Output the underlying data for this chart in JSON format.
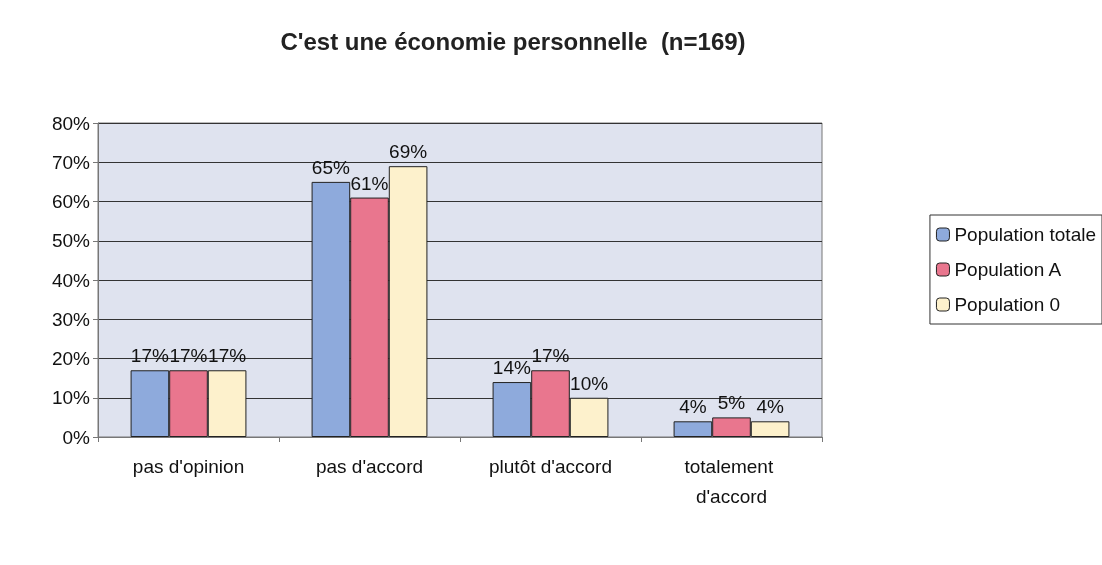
{
  "chart_data": {
    "type": "bar",
    "title": "C'est une économie personnelle  (n=169)",
    "categories": [
      "pas d'opinion",
      "pas d'accord",
      "plutôt d'accord",
      "totalement d'accord"
    ],
    "series": [
      {
        "name": "Population totale",
        "color": "#8eaadc",
        "values": [
          17,
          65,
          14,
          4
        ],
        "value_labels": [
          "17%",
          "65%",
          "14%",
          "4%"
        ]
      },
      {
        "name": "Population A",
        "color": "#e9768e",
        "values": [
          17,
          61,
          17,
          5
        ],
        "value_labels": [
          "17%",
          "61%",
          "17%",
          "5%"
        ]
      },
      {
        "name": "Population 0",
        "color": "#fdf1cc",
        "values": [
          17,
          69,
          10,
          4
        ],
        "value_labels": [
          "17%",
          "69%",
          "10%",
          "4%"
        ]
      }
    ],
    "ylim": [
      0,
      80
    ],
    "yticks": [
      {
        "value": 0,
        "label": "0%"
      },
      {
        "value": 10,
        "label": "10%"
      },
      {
        "value": 20,
        "label": "20%"
      },
      {
        "value": 30,
        "label": "30%"
      },
      {
        "value": 40,
        "label": "40%"
      },
      {
        "value": 50,
        "label": "50%"
      },
      {
        "value": 60,
        "label": "60%"
      },
      {
        "value": 70,
        "label": "70%"
      },
      {
        "value": 80,
        "label": "80%"
      }
    ],
    "grid": "y",
    "legend": "right"
  }
}
